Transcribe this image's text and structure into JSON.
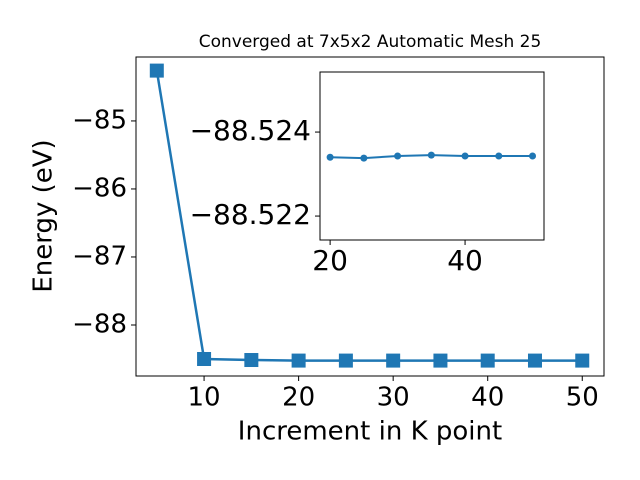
{
  "chart_data": [
    {
      "type": "line",
      "title": "Converged at 7x5x2 Automatic Mesh 25",
      "x_label": "Increment in K point",
      "y_label": "Energy (eV)",
      "x": [
        5,
        10,
        15,
        20,
        25,
        30,
        35,
        40,
        45,
        50
      ],
      "series": [
        {
          "color": "#1f77b4",
          "marker": "square",
          "values": [
            -84.26,
            -88.5,
            -88.515,
            -88.5234,
            -88.52338,
            -88.52343,
            -88.52345,
            -88.52343,
            -88.52343,
            -88.52343
          ]
        }
      ],
      "xlim": [
        2.8,
        52.3
      ],
      "ylim": [
        -88.75,
        -84.06
      ],
      "xticks": [
        10,
        20,
        30,
        40,
        50
      ],
      "yticks": [
        {
          "value": -85,
          "label": "−85"
        },
        {
          "value": -86,
          "label": "−86"
        },
        {
          "value": -87,
          "label": "−87"
        },
        {
          "value": -88,
          "label": "−88"
        }
      ]
    },
    {
      "type": "line",
      "x": [
        20,
        25,
        30,
        35,
        40,
        45,
        50
      ],
      "series": [
        {
          "color": "#1f77b4",
          "marker": "circle",
          "values": [
            -88.5234,
            -88.52338,
            -88.52343,
            -88.52345,
            -88.52343,
            -88.52343,
            -88.52343
          ]
        }
      ],
      "xlim": [
        18.5,
        51.7
      ],
      "ylim": [
        -88.52143,
        -88.52543
      ],
      "xticks": [
        20,
        40
      ],
      "yticks": [
        {
          "value": -88.524,
          "label": "−88.524"
        },
        {
          "value": -88.522,
          "label": "−88.522"
        }
      ]
    }
  ]
}
